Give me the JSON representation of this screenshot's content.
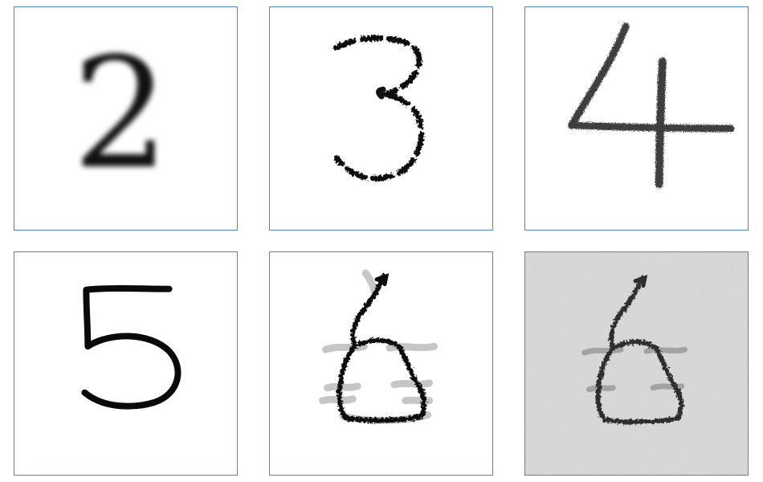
{
  "panels": [
    {
      "digit": "2",
      "style": "blurred"
    },
    {
      "digit": "3",
      "style": "dashed"
    },
    {
      "digit": "4",
      "style": "chalky"
    },
    {
      "digit": "5",
      "style": "clean-stroke"
    },
    {
      "digit": "6",
      "style": "shadow-smudge"
    },
    {
      "digit": "6",
      "style": "noisy-background"
    }
  ],
  "colors": {
    "border": "#4a86c0",
    "ink": "#111111",
    "noise_bg": "#b8b8b8"
  }
}
